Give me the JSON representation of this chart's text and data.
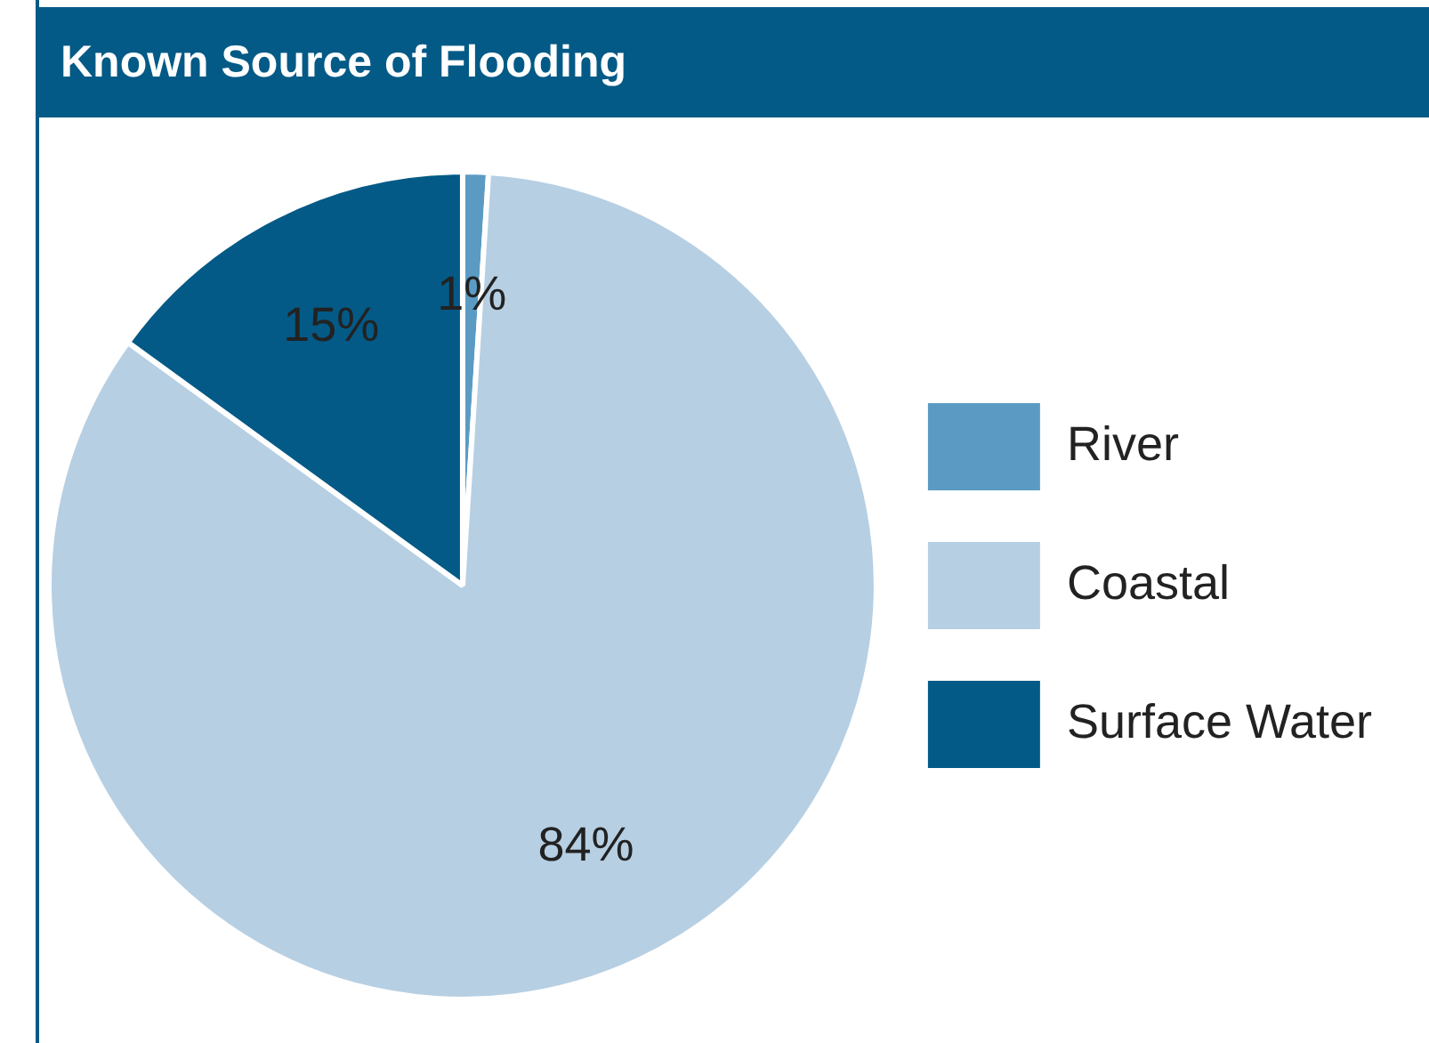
{
  "chart_data": {
    "type": "pie",
    "title": "Known Source of Flooding",
    "categories": [
      "River",
      "Coastal",
      "Surface Water"
    ],
    "values": [
      1,
      84,
      15
    ],
    "colors": [
      "#5b9bc3",
      "#b7cfe3",
      "#045a86"
    ],
    "value_labels": [
      "1%",
      "84%",
      "15%"
    ],
    "legend": "right"
  }
}
